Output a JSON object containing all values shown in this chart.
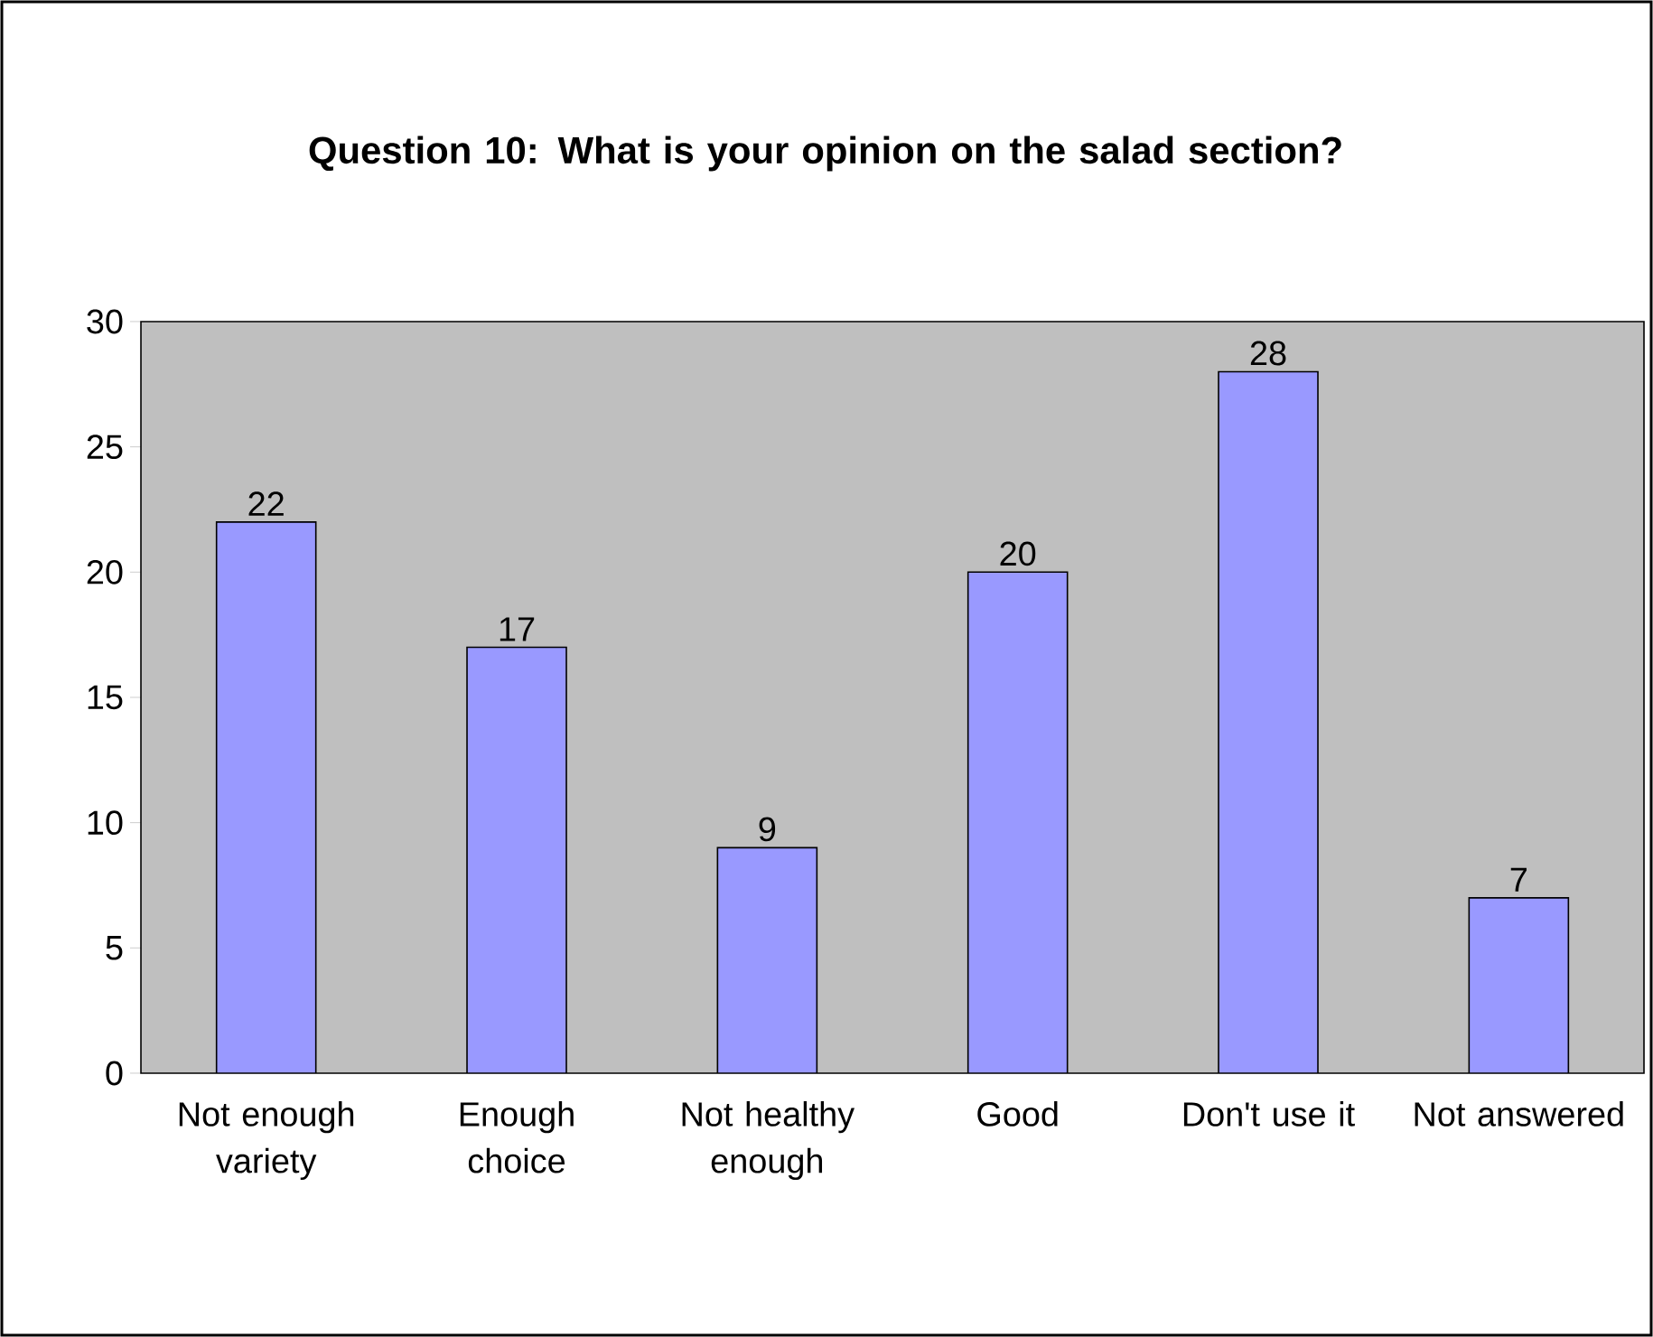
{
  "chart_data": {
    "type": "bar",
    "title": "Question 10: What is your opinion on the salad section?",
    "categories": [
      "Not enough variety",
      "Enough choice",
      "Not healthy enough",
      "Good",
      "Don't use it",
      "Not answered"
    ],
    "values": [
      22,
      17,
      9,
      20,
      28,
      7
    ],
    "color": "#9999ff",
    "ylim": [
      0,
      30
    ],
    "yticks": [
      0,
      5,
      10,
      15,
      20,
      25,
      30
    ],
    "data_labels": true
  }
}
